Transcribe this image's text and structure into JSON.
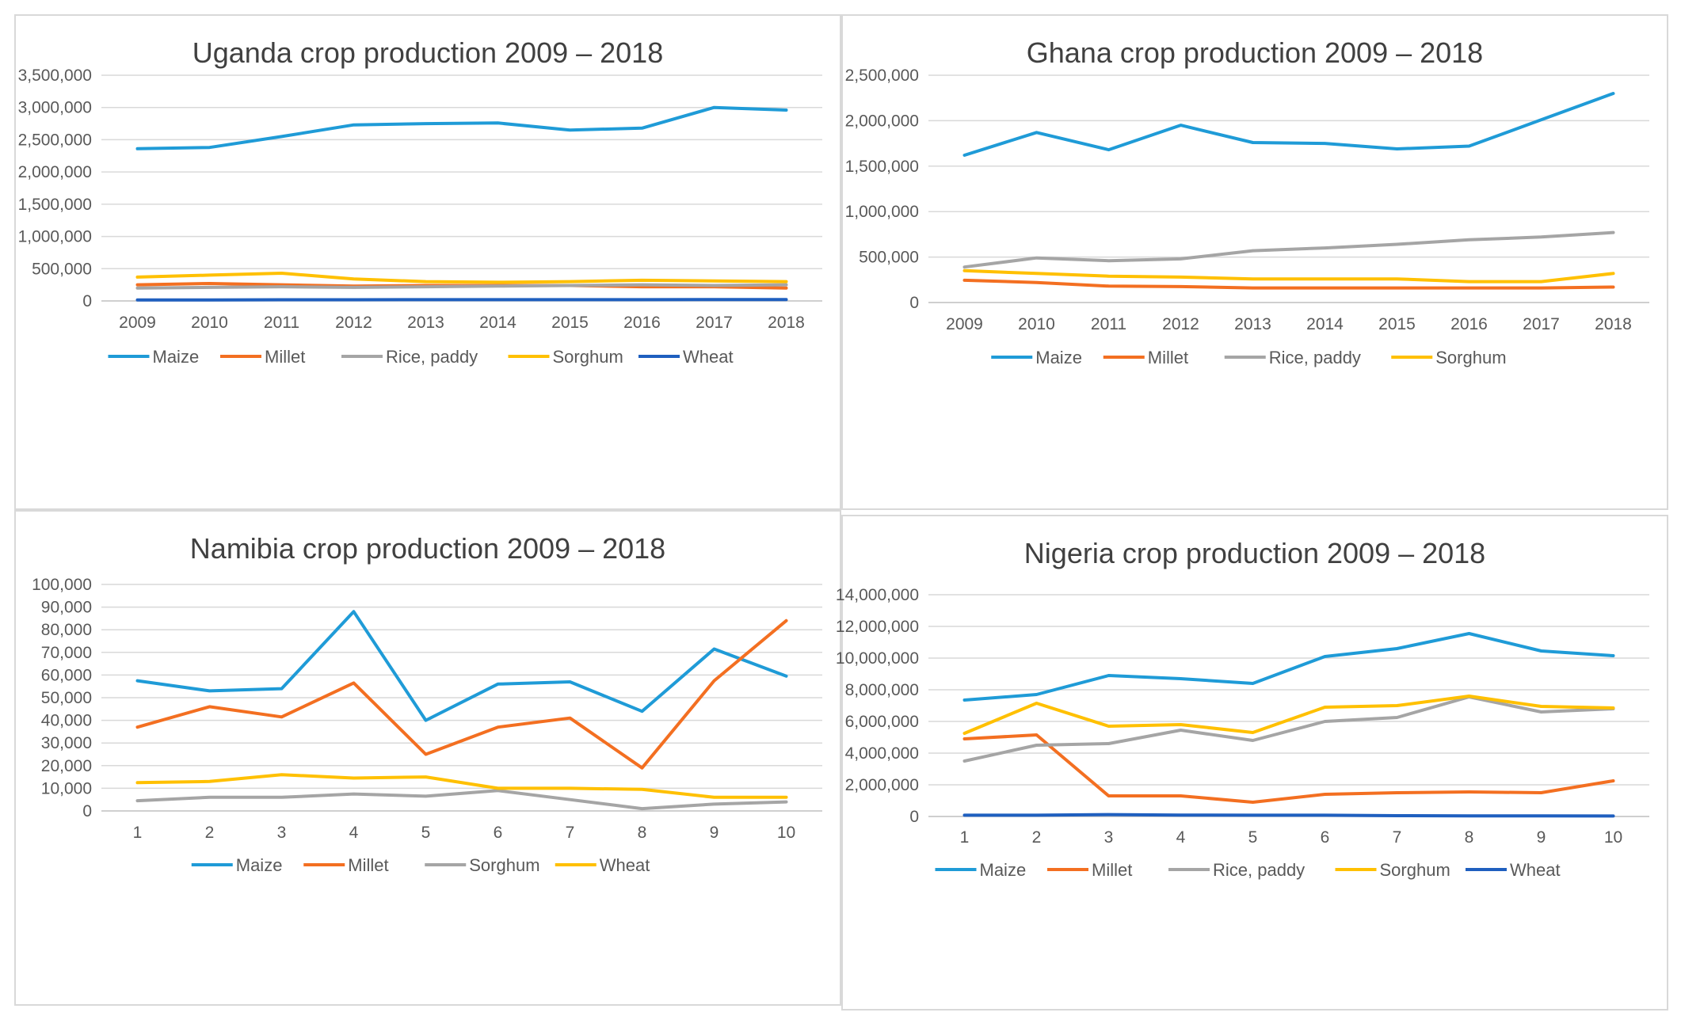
{
  "chart_data": [
    {
      "type": "line",
      "title": "Uganda crop production 2009 – 2018",
      "xlabel": "",
      "ylabel": "",
      "categories": [
        "2009",
        "2010",
        "2011",
        "2012",
        "2013",
        "2014",
        "2015",
        "2016",
        "2017",
        "2018"
      ],
      "ylim": [
        0,
        3500000
      ],
      "yticks": [
        0,
        500000,
        1000000,
        1500000,
        2000000,
        2500000,
        3000000,
        3500000
      ],
      "ytick_labels": [
        "0",
        "500,000",
        "1,000,000",
        "1,500,000",
        "2,000,000",
        "2,500,000",
        "3,000,000",
        "3,500,000"
      ],
      "grid": true,
      "legend": "bottom",
      "series": [
        {
          "name": "Maize",
          "color": "#1f9bd7",
          "values": [
            2360000,
            2380000,
            2550000,
            2730000,
            2750000,
            2760000,
            2650000,
            2680000,
            3000000,
            2960000
          ]
        },
        {
          "name": "Millet",
          "color": "#f36f21",
          "values": [
            250000,
            270000,
            250000,
            230000,
            240000,
            240000,
            240000,
            220000,
            220000,
            200000
          ]
        },
        {
          "name": "Rice, paddy",
          "color": "#a5a5a5",
          "values": [
            200000,
            210000,
            220000,
            210000,
            220000,
            230000,
            240000,
            250000,
            240000,
            250000
          ]
        },
        {
          "name": "Sorghum",
          "color": "#ffc000",
          "values": [
            370000,
            400000,
            430000,
            340000,
            300000,
            290000,
            300000,
            320000,
            310000,
            300000
          ]
        },
        {
          "name": "Wheat",
          "color": "#1f5fbf",
          "values": [
            15000,
            15000,
            18000,
            18000,
            20000,
            20000,
            20000,
            20000,
            22000,
            22000
          ]
        }
      ]
    },
    {
      "type": "line",
      "title": "Ghana crop production 2009 – 2018",
      "xlabel": "",
      "ylabel": "",
      "categories": [
        "2009",
        "2010",
        "2011",
        "2012",
        "2013",
        "2014",
        "2015",
        "2016",
        "2017",
        "2018"
      ],
      "ylim": [
        0,
        2500000
      ],
      "yticks": [
        0,
        500000,
        1000000,
        1500000,
        2000000,
        2500000
      ],
      "ytick_labels": [
        "0",
        "500,000",
        "1,000,000",
        "1,500,000",
        "2,000,000",
        "2,500,000"
      ],
      "grid": true,
      "legend": "bottom",
      "series": [
        {
          "name": "Maize",
          "color": "#1f9bd7",
          "values": [
            1620000,
            1870000,
            1680000,
            1950000,
            1760000,
            1750000,
            1690000,
            1720000,
            2010000,
            2300000
          ]
        },
        {
          "name": "Millet",
          "color": "#f36f21",
          "values": [
            245000,
            220000,
            180000,
            175000,
            160000,
            160000,
            160000,
            160000,
            160000,
            170000
          ]
        },
        {
          "name": "Rice, paddy",
          "color": "#a5a5a5",
          "values": [
            390000,
            490000,
            460000,
            480000,
            570000,
            600000,
            640000,
            690000,
            720000,
            770000
          ]
        },
        {
          "name": "Sorghum",
          "color": "#ffc000",
          "values": [
            350000,
            320000,
            290000,
            280000,
            260000,
            260000,
            260000,
            230000,
            230000,
            320000
          ]
        }
      ]
    },
    {
      "type": "line",
      "title": "Namibia crop production 2009 – 2018",
      "xlabel": "",
      "ylabel": "",
      "categories": [
        "1",
        "2",
        "3",
        "4",
        "5",
        "6",
        "7",
        "8",
        "9",
        "10"
      ],
      "ylim": [
        0,
        100000
      ],
      "yticks": [
        0,
        10000,
        20000,
        30000,
        40000,
        50000,
        60000,
        70000,
        80000,
        90000,
        100000
      ],
      "ytick_labels": [
        "0",
        "10,000",
        "20,000",
        "30,000",
        "40,000",
        "50,000",
        "60,000",
        "70,000",
        "80,000",
        "90,000",
        "100,000"
      ],
      "grid": true,
      "legend": "bottom",
      "series": [
        {
          "name": "Maize",
          "color": "#1f9bd7",
          "values": [
            57500,
            53000,
            54000,
            88000,
            40000,
            56000,
            57000,
            44000,
            71500,
            59500
          ]
        },
        {
          "name": "Millet",
          "color": "#f36f21",
          "values": [
            37000,
            46000,
            41500,
            56500,
            25000,
            37000,
            41000,
            19000,
            57500,
            84000
          ]
        },
        {
          "name": "Sorghum",
          "color": "#a5a5a5",
          "values": [
            4500,
            6000,
            6000,
            7500,
            6500,
            9000,
            5000,
            1000,
            3000,
            4000
          ]
        },
        {
          "name": "Wheat",
          "color": "#ffc000",
          "values": [
            12500,
            13000,
            16000,
            14500,
            15000,
            10000,
            10000,
            9500,
            6000,
            6000
          ]
        }
      ]
    },
    {
      "type": "line",
      "title": "Nigeria crop production 2009 – 2018",
      "xlabel": "",
      "ylabel": "",
      "categories": [
        "1",
        "2",
        "3",
        "4",
        "5",
        "6",
        "7",
        "8",
        "9",
        "10"
      ],
      "ylim": [
        0,
        14000000
      ],
      "yticks": [
        0,
        2000000,
        4000000,
        6000000,
        8000000,
        10000000,
        12000000,
        14000000
      ],
      "ytick_labels": [
        "0",
        "2,000,000",
        "4,000,000",
        "6,000,000",
        "8,000,000",
        "10,000,000",
        "12,000,000",
        "14,000,000"
      ],
      "grid": true,
      "legend": "bottom",
      "series": [
        {
          "name": "Maize",
          "color": "#1f9bd7",
          "values": [
            7350000,
            7700000,
            8900000,
            8700000,
            8400000,
            10100000,
            10600000,
            11550000,
            10450000,
            10150000
          ]
        },
        {
          "name": "Millet",
          "color": "#f36f21",
          "values": [
            4900000,
            5150000,
            1300000,
            1300000,
            900000,
            1400000,
            1500000,
            1550000,
            1500000,
            2250000
          ]
        },
        {
          "name": "Rice, paddy",
          "color": "#a5a5a5",
          "values": [
            3500000,
            4500000,
            4600000,
            5450000,
            4800000,
            6000000,
            6250000,
            7550000,
            6600000,
            6800000
          ]
        },
        {
          "name": "Sorghum",
          "color": "#ffc000",
          "values": [
            5250000,
            7150000,
            5700000,
            5800000,
            5300000,
            6900000,
            7000000,
            7600000,
            6950000,
            6850000
          ]
        },
        {
          "name": "Wheat",
          "color": "#1f5fbf",
          "values": [
            80000,
            80000,
            120000,
            90000,
            80000,
            80000,
            50000,
            40000,
            40000,
            30000
          ]
        }
      ]
    }
  ]
}
